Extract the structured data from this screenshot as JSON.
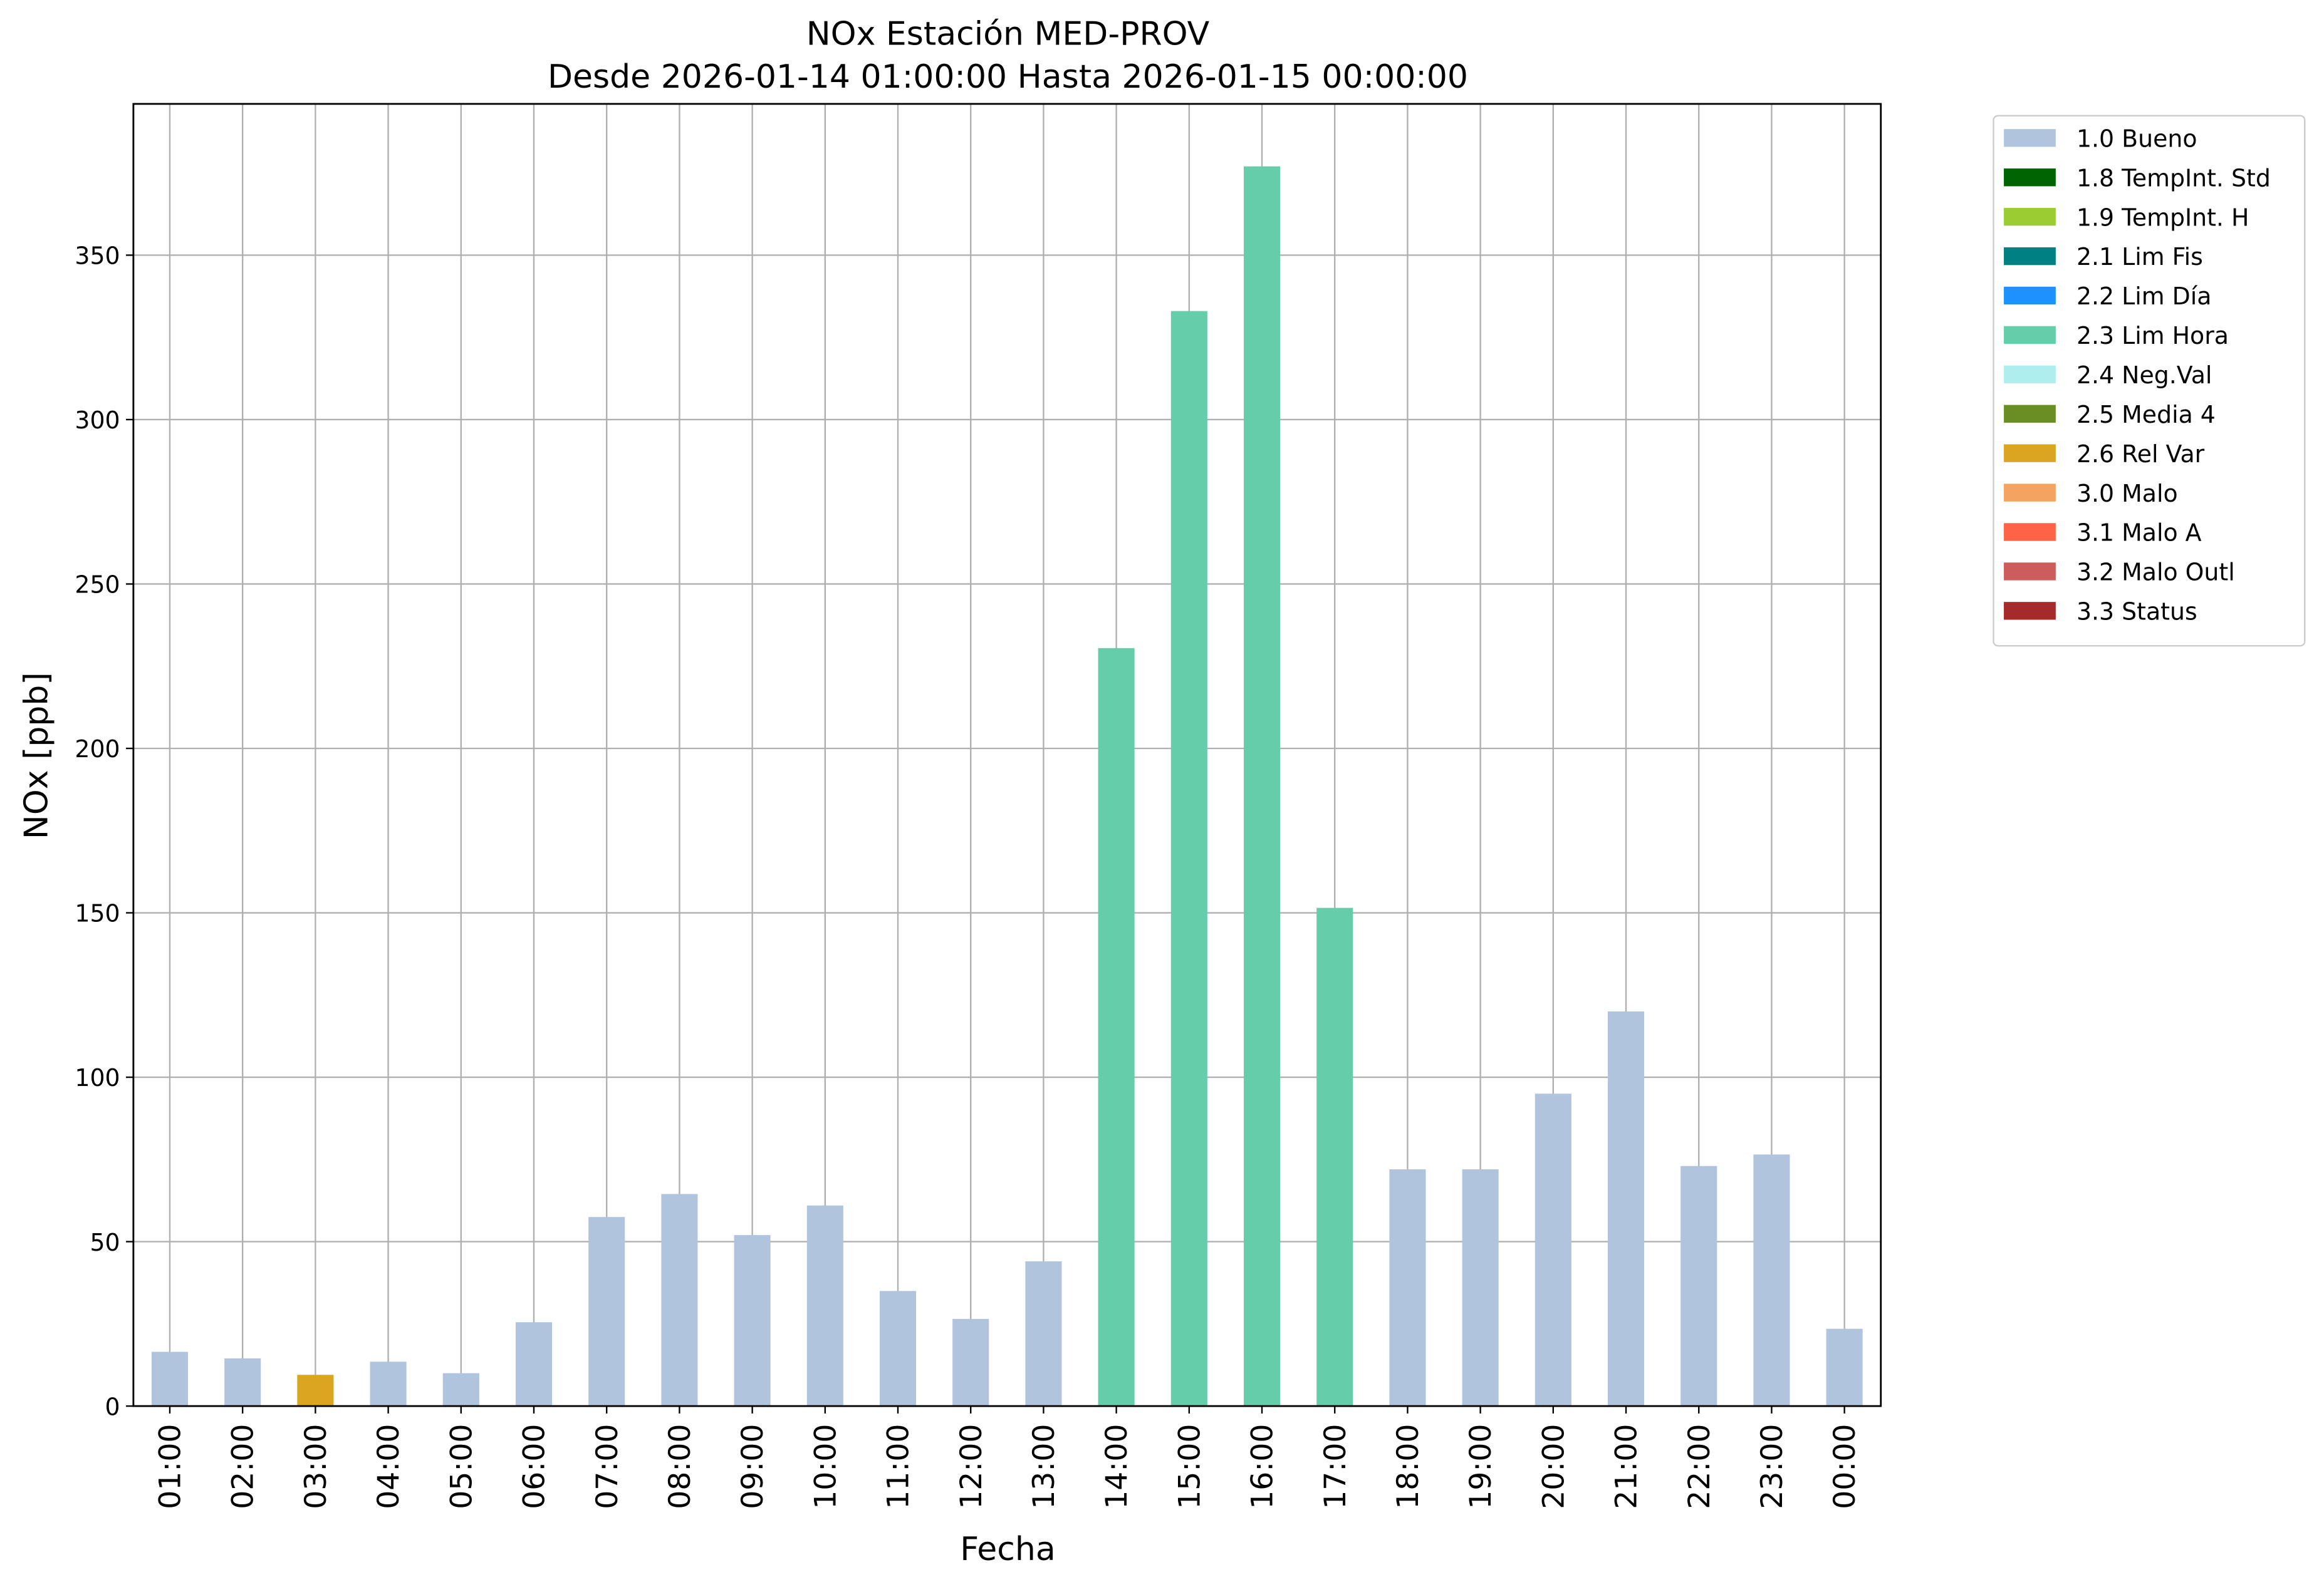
{
  "chart_data": {
    "type": "bar",
    "stacked": true,
    "title": "NOx Estación MED-PROV",
    "subtitle": "Desde 2026-01-14 01:00:00 Hasta 2026-01-15 00:00:00",
    "x_label": "Fecha",
    "y_label": "NOx [ppb]",
    "categories": [
      "01:00",
      "02:00",
      "03:00",
      "04:00",
      "05:00",
      "06:00",
      "07:00",
      "08:00",
      "09:00",
      "10:00",
      "11:00",
      "12:00",
      "13:00",
      "14:00",
      "15:00",
      "16:00",
      "17:00",
      "18:00",
      "19:00",
      "20:00",
      "21:00",
      "22:00",
      "23:00",
      "00:00"
    ],
    "ylim": [
      0,
      396
    ],
    "yticks": [
      0,
      50,
      100,
      150,
      200,
      250,
      300,
      350
    ],
    "grid": true,
    "legend": "outside-right",
    "series": [
      {
        "name": "1.0 Bueno",
        "color": "#b0c4de",
        "values": [
          16.5,
          14.5,
          null,
          13.5,
          10,
          25.5,
          57.5,
          64.5,
          52,
          61,
          35,
          26.5,
          44,
          null,
          null,
          null,
          null,
          72,
          72,
          95,
          120,
          73,
          76.5,
          23.5
        ]
      },
      {
        "name": "1.8 TempInt. Std",
        "color": "#006400",
        "values": [
          null,
          null,
          null,
          null,
          null,
          null,
          null,
          null,
          null,
          null,
          null,
          null,
          null,
          null,
          null,
          null,
          null,
          null,
          null,
          null,
          null,
          null,
          null,
          null
        ]
      },
      {
        "name": "1.9 TempInt. H",
        "color": "#9acd32",
        "values": [
          null,
          null,
          null,
          null,
          null,
          null,
          null,
          null,
          null,
          null,
          null,
          null,
          null,
          null,
          null,
          null,
          null,
          null,
          null,
          null,
          null,
          null,
          null,
          null
        ]
      },
      {
        "name": "2.1 Lim Fis",
        "color": "#008080",
        "values": [
          null,
          null,
          null,
          null,
          null,
          null,
          null,
          null,
          null,
          null,
          null,
          null,
          null,
          null,
          null,
          null,
          null,
          null,
          null,
          null,
          null,
          null,
          null,
          null
        ]
      },
      {
        "name": "2.2 Lim Día",
        "color": "#1e90ff",
        "values": [
          null,
          null,
          null,
          null,
          null,
          null,
          null,
          null,
          null,
          null,
          null,
          null,
          null,
          null,
          null,
          null,
          null,
          null,
          null,
          null,
          null,
          null,
          null,
          null
        ]
      },
      {
        "name": "2.3 Lim Hora",
        "color": "#66cdaa",
        "values": [
          null,
          null,
          null,
          null,
          null,
          null,
          null,
          null,
          null,
          null,
          null,
          null,
          null,
          230.5,
          333,
          377,
          151.5,
          null,
          null,
          null,
          null,
          null,
          null,
          null
        ]
      },
      {
        "name": "2.4 Neg.Val",
        "color": "#afeeee",
        "values": [
          null,
          null,
          null,
          null,
          null,
          null,
          null,
          null,
          null,
          null,
          null,
          null,
          null,
          null,
          null,
          null,
          null,
          null,
          null,
          null,
          null,
          null,
          null,
          null
        ]
      },
      {
        "name": "2.5 Media 4",
        "color": "#6b8e23",
        "values": [
          null,
          null,
          null,
          null,
          null,
          null,
          null,
          null,
          null,
          null,
          null,
          null,
          null,
          null,
          null,
          null,
          null,
          null,
          null,
          null,
          null,
          null,
          null,
          null
        ]
      },
      {
        "name": "2.6 Rel Var",
        "color": "#daa520",
        "values": [
          null,
          null,
          9.5,
          null,
          null,
          null,
          null,
          null,
          null,
          null,
          null,
          null,
          null,
          null,
          null,
          null,
          null,
          null,
          null,
          null,
          null,
          null,
          null,
          null
        ]
      },
      {
        "name": "3.0 Malo",
        "color": "#f4a460",
        "values": [
          null,
          null,
          null,
          null,
          null,
          null,
          null,
          null,
          null,
          null,
          null,
          null,
          null,
          null,
          null,
          null,
          null,
          null,
          null,
          null,
          null,
          null,
          null,
          null
        ]
      },
      {
        "name": "3.1 Malo A",
        "color": "#ff6347",
        "values": [
          null,
          null,
          null,
          null,
          null,
          null,
          null,
          null,
          null,
          null,
          null,
          null,
          null,
          null,
          null,
          null,
          null,
          null,
          null,
          null,
          null,
          null,
          null,
          null
        ]
      },
      {
        "name": "3.2 Malo Outl",
        "color": "#cd5c5c",
        "values": [
          null,
          null,
          null,
          null,
          null,
          null,
          null,
          null,
          null,
          null,
          null,
          null,
          null,
          null,
          null,
          null,
          null,
          null,
          null,
          null,
          null,
          null,
          null,
          null
        ]
      },
      {
        "name": "3.3 Status",
        "color": "#a52a2a",
        "values": [
          null,
          null,
          null,
          null,
          null,
          null,
          null,
          null,
          null,
          null,
          null,
          null,
          null,
          null,
          null,
          null,
          null,
          null,
          null,
          null,
          null,
          null,
          null,
          null
        ]
      }
    ]
  }
}
